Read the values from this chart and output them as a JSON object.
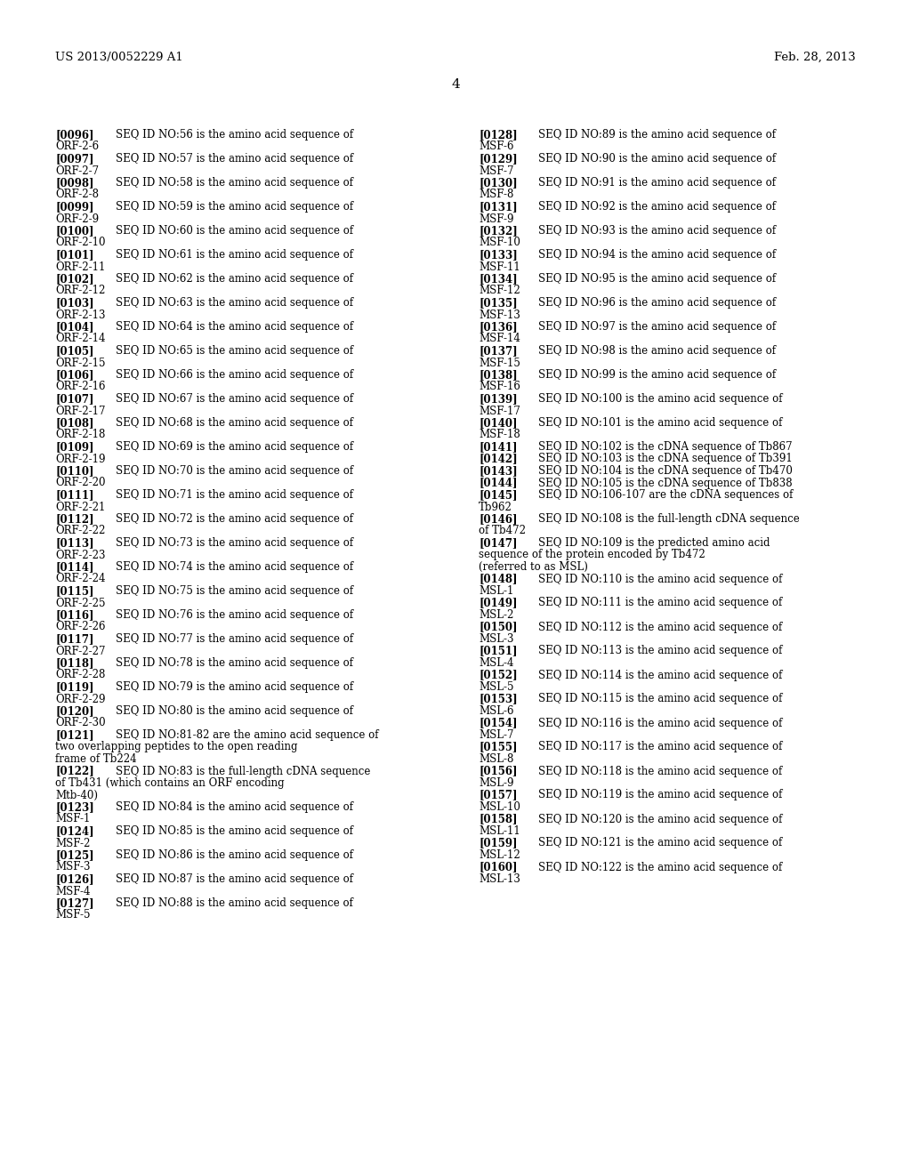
{
  "background_color": "#ffffff",
  "header_left": "US 2013/0052229 A1",
  "header_right": "Feb. 28, 2013",
  "page_number": "4",
  "left_column": [
    {
      "tag": "[0096]",
      "text": "SEQ ID NO:56 is the amino acid sequence of ORF-2-6"
    },
    {
      "tag": "[0097]",
      "text": "SEQ ID NO:57 is the amino acid sequence of ORF-2-7"
    },
    {
      "tag": "[0098]",
      "text": "SEQ ID NO:58 is the amino acid sequence of ORF-2-8"
    },
    {
      "tag": "[0099]",
      "text": "SEQ ID NO:59 is the amino acid sequence of ORF-2-9"
    },
    {
      "tag": "[0100]",
      "text": "SEQ ID NO:60 is the amino acid sequence of ORF-2-10"
    },
    {
      "tag": "[0101]",
      "text": "SEQ ID NO:61 is the amino acid sequence of ORF-2-11"
    },
    {
      "tag": "[0102]",
      "text": "SEQ ID NO:62 is the amino acid sequence of ORF-2-12"
    },
    {
      "tag": "[0103]",
      "text": "SEQ ID NO:63 is the amino acid sequence of ORF-2-13"
    },
    {
      "tag": "[0104]",
      "text": "SEQ ID NO:64 is the amino acid sequence of ORF-2-14"
    },
    {
      "tag": "[0105]",
      "text": "SEQ ID NO:65 is the amino acid sequence of ORF-2-15"
    },
    {
      "tag": "[0106]",
      "text": "SEQ ID NO:66 is the amino acid sequence of ORF-2-16"
    },
    {
      "tag": "[0107]",
      "text": "SEQ ID NO:67 is the amino acid sequence of ORF-2-17"
    },
    {
      "tag": "[0108]",
      "text": "SEQ ID NO:68 is the amino acid sequence of ORF-2-18"
    },
    {
      "tag": "[0109]",
      "text": "SEQ ID NO:69 is the amino acid sequence of ORF-2-19"
    },
    {
      "tag": "[0110]",
      "text": "SEQ ID NO:70 is the amino acid sequence of ORF-2-20"
    },
    {
      "tag": "[0111]",
      "text": "SEQ ID NO:71 is the amino acid sequence of ORF-2-21"
    },
    {
      "tag": "[0112]",
      "text": "SEQ ID NO:72 is the amino acid sequence of ORF-2-22"
    },
    {
      "tag": "[0113]",
      "text": "SEQ ID NO:73 is the amino acid sequence of ORF-2-23"
    },
    {
      "tag": "[0114]",
      "text": "SEQ ID NO:74 is the amino acid sequence of ORF-2-24"
    },
    {
      "tag": "[0115]",
      "text": "SEQ ID NO:75 is the amino acid sequence of ORF-2-25"
    },
    {
      "tag": "[0116]",
      "text": "SEQ ID NO:76 is the amino acid sequence of ORF-2-26"
    },
    {
      "tag": "[0117]",
      "text": "SEQ ID NO:77 is the amino acid sequence of ORF-2-27"
    },
    {
      "tag": "[0118]",
      "text": "SEQ ID NO:78 is the amino acid sequence of ORF-2-28"
    },
    {
      "tag": "[0119]",
      "text": "SEQ ID NO:79 is the amino acid sequence of ORF-2-29"
    },
    {
      "tag": "[0120]",
      "text": "SEQ ID NO:80 is the amino acid sequence of ORF-2-30"
    },
    {
      "tag": "[0121]",
      "text": "SEQ ID NO:81-82 are the amino acid sequence of two overlapping peptides to the open reading frame of Tb224"
    },
    {
      "tag": "[0122]",
      "text": "SEQ ID NO:83 is the full-length cDNA sequence of Tb431 (which contains an ORF encoding Mtb-40)"
    },
    {
      "tag": "[0123]",
      "text": "SEQ ID NO:84 is the amino acid sequence of MSF-1"
    },
    {
      "tag": "[0124]",
      "text": "SEQ ID NO:85 is the amino acid sequence of MSF-2"
    },
    {
      "tag": "[0125]",
      "text": "SEQ ID NO:86 is the amino acid sequence of MSF-3"
    },
    {
      "tag": "[0126]",
      "text": "SEQ ID NO:87 is the amino acid sequence of MSF-4"
    },
    {
      "tag": "[0127]",
      "text": "SEQ ID NO:88 is the amino acid sequence of MSF-5"
    }
  ],
  "right_column": [
    {
      "tag": "[0128]",
      "text": "SEQ ID NO:89 is the amino acid sequence of MSF-6"
    },
    {
      "tag": "[0129]",
      "text": "SEQ ID NO:90 is the amino acid sequence of MSF-7"
    },
    {
      "tag": "[0130]",
      "text": "SEQ ID NO:91 is the amino acid sequence of MSF-8"
    },
    {
      "tag": "[0131]",
      "text": "SEQ ID NO:92 is the amino acid sequence of MSF-9"
    },
    {
      "tag": "[0132]",
      "text": "SEQ ID NO:93 is the amino acid sequence of MSF-10"
    },
    {
      "tag": "[0133]",
      "text": "SEQ ID NO:94 is the amino acid sequence of MSF-11"
    },
    {
      "tag": "[0134]",
      "text": "SEQ ID NO:95 is the amino acid sequence of MSF-12"
    },
    {
      "tag": "[0135]",
      "text": "SEQ ID NO:96 is the amino acid sequence of MSF-13"
    },
    {
      "tag": "[0136]",
      "text": "SEQ ID NO:97 is the amino acid sequence of MSF-14"
    },
    {
      "tag": "[0137]",
      "text": "SEQ ID NO:98 is the amino acid sequence of MSF-15"
    },
    {
      "tag": "[0138]",
      "text": "SEQ ID NO:99 is the amino acid sequence of MSF-16"
    },
    {
      "tag": "[0139]",
      "text": "SEQ ID NO:100 is the amino acid sequence of MSF-17"
    },
    {
      "tag": "[0140]",
      "text": "SEQ ID NO:101 is the amino acid sequence of MSF-18"
    },
    {
      "tag": "[0141]",
      "text": "SEQ ID NO:102 is the cDNA sequence of Tb867"
    },
    {
      "tag": "[0142]",
      "text": "SEQ ID NO:103 is the cDNA sequence of Tb391"
    },
    {
      "tag": "[0143]",
      "text": "SEQ ID NO:104 is the cDNA sequence of Tb470"
    },
    {
      "tag": "[0144]",
      "text": "SEQ ID NO:105 is the cDNA sequence of Tb838"
    },
    {
      "tag": "[0145]",
      "text": "SEQ ID NO:106-107 are the cDNA sequences of Tb962"
    },
    {
      "tag": "[0146]",
      "text": "SEQ ID NO:108 is the full-length cDNA sequence of Tb472"
    },
    {
      "tag": "[0147]",
      "text": "SEQ ID NO:109 is the predicted amino acid sequence of the protein encoded by Tb472 (referred to as MSL)"
    },
    {
      "tag": "[0148]",
      "text": "SEQ ID NO:110 is the amino acid sequence of MSL-1"
    },
    {
      "tag": "[0149]",
      "text": "SEQ ID NO:111 is the amino acid sequence of MSL-2"
    },
    {
      "tag": "[0150]",
      "text": "SEQ ID NO:112 is the amino acid sequence of MSL-3"
    },
    {
      "tag": "[0151]",
      "text": "SEQ ID NO:113 is the amino acid sequence of MSL-4"
    },
    {
      "tag": "[0152]",
      "text": "SEQ ID NO:114 is the amino acid sequence of MSL-5"
    },
    {
      "tag": "[0153]",
      "text": "SEQ ID NO:115 is the amino acid sequence of MSL-6"
    },
    {
      "tag": "[0154]",
      "text": "SEQ ID NO:116 is the amino acid sequence of MSL-7"
    },
    {
      "tag": "[0155]",
      "text": "SEQ ID NO:117 is the amino acid sequence of MSL-8"
    },
    {
      "tag": "[0156]",
      "text": "SEQ ID NO:118 is the amino acid sequence of MSL-9"
    },
    {
      "tag": "[0157]",
      "text": "SEQ ID NO:119 is the amino acid sequence of MSL-10"
    },
    {
      "tag": "[0158]",
      "text": "SEQ ID NO:120 is the amino acid sequence of MSL-11"
    },
    {
      "tag": "[0159]",
      "text": "SEQ ID NO:121 is the amino acid sequence of MSL-12"
    },
    {
      "tag": "[0160]",
      "text": "SEQ ID NO:122 is the amino acid sequence of MSL-13"
    }
  ],
  "font_size": 8.5,
  "tag_font_size": 8.5,
  "header_font_size": 9.5,
  "page_num_font_size": 11
}
